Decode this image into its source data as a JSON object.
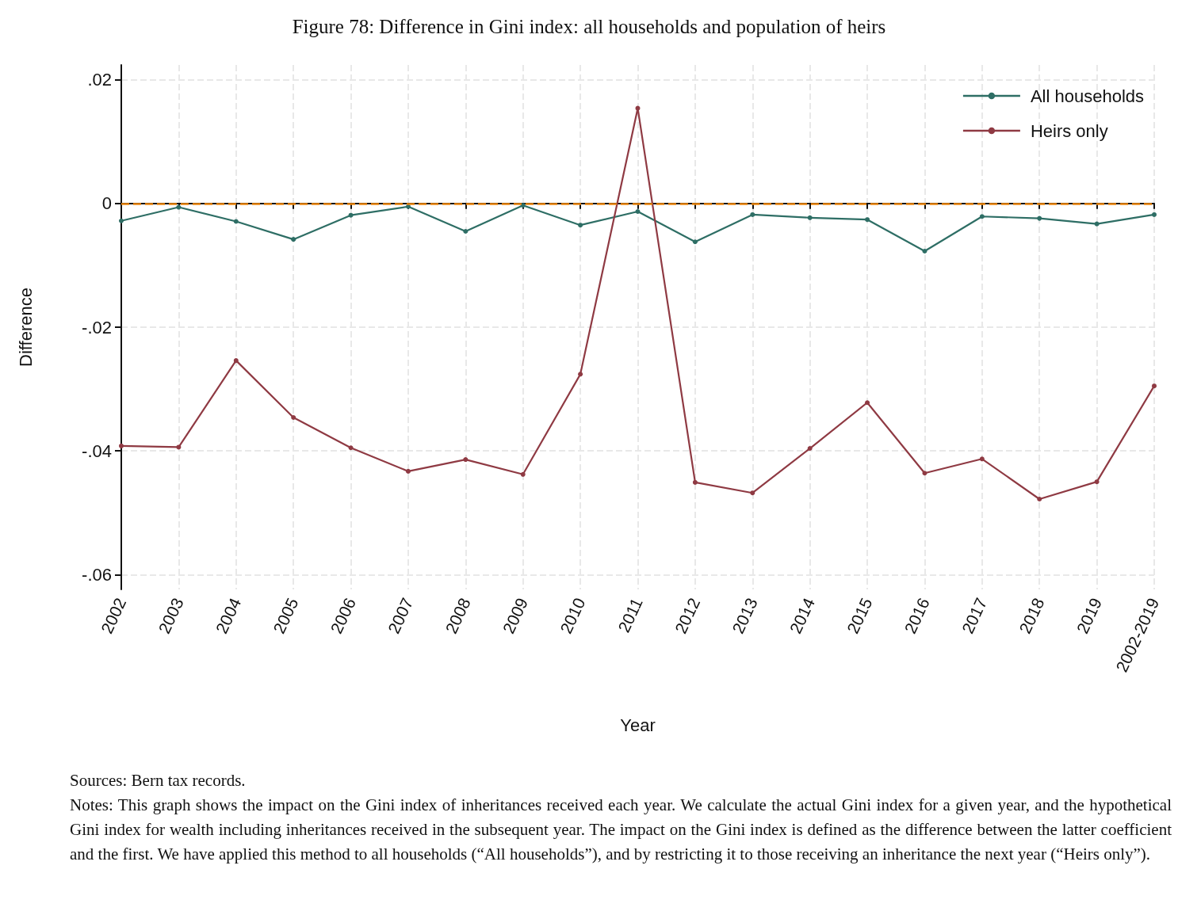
{
  "chart_data": {
    "type": "line",
    "title": "Figure 78: Difference in Gini index: all households and population of heirs",
    "xlabel": "Year",
    "ylabel": "Difference",
    "categories": [
      "2002",
      "2003",
      "2004",
      "2005",
      "2006",
      "2007",
      "2008",
      "2009",
      "2010",
      "2011",
      "2012",
      "2013",
      "2014",
      "2015",
      "2016",
      "2017",
      "2018",
      "2019",
      "2002-2019"
    ],
    "series": [
      {
        "name": "All households",
        "color": "#2e6e65",
        "values": [
          -0.0028,
          -0.0006,
          -0.0029,
          -0.0058,
          -0.0019,
          -0.0005,
          -0.0045,
          -0.0003,
          -0.0035,
          -0.0013,
          -0.0062,
          -0.0018,
          -0.0023,
          -0.0026,
          -0.0077,
          -0.0021,
          -0.0024,
          -0.0033,
          -0.0018
        ]
      },
      {
        "name": "Heirs only",
        "color": "#8f3a43",
        "values": [
          -0.0392,
          -0.0394,
          -0.0254,
          -0.0346,
          -0.0395,
          -0.0433,
          -0.0414,
          -0.0438,
          -0.0276,
          0.0154,
          -0.0451,
          -0.0468,
          -0.0396,
          -0.0322,
          -0.0436,
          -0.0413,
          -0.0478,
          -0.045,
          -0.0295
        ]
      }
    ],
    "ylim": [
      -0.0624,
      0.0224
    ],
    "yticks": [
      {
        "value": -0.06,
        "label": "-.06"
      },
      {
        "value": -0.04,
        "label": "-.04"
      },
      {
        "value": -0.02,
        "label": "-.02"
      },
      {
        "value": 0,
        "label": "0"
      },
      {
        "value": 0.02,
        "label": ".02"
      }
    ],
    "ref_lines": [
      {
        "axis": "y",
        "value": 0,
        "label": null,
        "color": "#e8830c",
        "line_style": "dashed"
      }
    ],
    "grid": true,
    "legend": "top right",
    "marker": "circle",
    "line_style": "solid",
    "annotations": [
      "Sources: Bern tax records.",
      "Notes: This graph shows the impact on the Gini index of inheritances received each year. We calculate the actual Gini index for a given year, and the hypothetical Gini index for wealth including inheritances received in the subsequent year. The impact on the Gini index is defined as the difference between the latter coefficient and the first. We have applied this method to all households (“All households”), and by restricting it to those receiving an inheritance the next year (“Heirs only”)."
    ]
  }
}
